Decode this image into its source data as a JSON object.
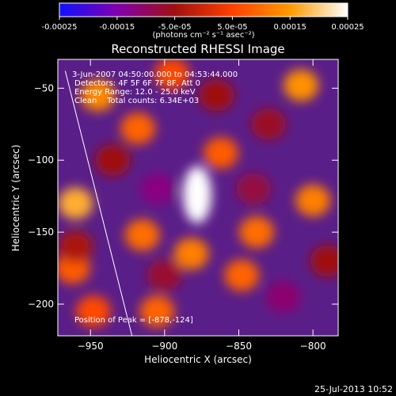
{
  "colorbar": {
    "ticks": [
      "-0.00025",
      "-0.00015",
      "-5.0e-05",
      "5.0e-05",
      "0.00015",
      "0.00025"
    ],
    "tick_values": [
      -0.00025,
      -0.00015,
      -5e-05,
      5e-05,
      0.00015,
      0.00025
    ],
    "range": [
      -0.00025,
      0.00025
    ],
    "unit_label": "(photons cm⁻² s⁻¹ asec⁻²)",
    "colors": [
      "#1010ff",
      "#8000b0",
      "#a01010",
      "#ff4000",
      "#ff9a00",
      "#ffffff"
    ]
  },
  "chart_data": {
    "type": "heatmap",
    "title": "Reconstructed RHESSI Image",
    "xlabel": "Heliocentric X (arcsec)",
    "ylabel": "Heliocentric Y (arcsec)",
    "xlim": [
      -972,
      -783
    ],
    "ylim": [
      -222,
      -30
    ],
    "xticks": [
      -950,
      -900,
      -850,
      -800
    ],
    "yticks": [
      -50,
      -100,
      -150,
      -200
    ],
    "limb_line": [
      [
        -967,
        -38
      ],
      [
        -922,
        -222
      ]
    ],
    "annotations": [
      "3-Jun-2007 04:50:00.000 to 04:53:44.000",
      "Detectors: 4F 5F 6F 7F 8F, Att 0",
      "Energy Range: 12.0 - 25.0 keV",
      "Clean    Total counts: 6.34E+03"
    ],
    "peak_label": "Position of Peak = [-878,-124]",
    "peak": [
      -878,
      -124
    ],
    "blobs": [
      {
        "x": -878,
        "y": -124,
        "value": 0.00025
      },
      {
        "x": -882,
        "y": -165,
        "value": 0.00012
      },
      {
        "x": -960,
        "y": -130,
        "value": 0.00017
      },
      {
        "x": -945,
        "y": -55,
        "value": 0.00013
      },
      {
        "x": -915,
        "y": -152,
        "value": 0.0001
      },
      {
        "x": -918,
        "y": -78,
        "value": 9e-05
      },
      {
        "x": -808,
        "y": -48,
        "value": 0.00014
      },
      {
        "x": -800,
        "y": -128,
        "value": 0.00012
      },
      {
        "x": -838,
        "y": -150,
        "value": 0.0001
      },
      {
        "x": -848,
        "y": -180,
        "value": 9e-05
      },
      {
        "x": -862,
        "y": -95,
        "value": 8e-05
      },
      {
        "x": -905,
        "y": -205,
        "value": 9e-05
      },
      {
        "x": -948,
        "y": -205,
        "value": 6e-05
      },
      {
        "x": -962,
        "y": -175,
        "value": 8e-05
      },
      {
        "x": -895,
        "y": -40,
        "value": 6e-05
      },
      {
        "x": -830,
        "y": -75,
        "value": -6e-05
      },
      {
        "x": -905,
        "y": -120,
        "value": -0.00012
      },
      {
        "x": -840,
        "y": -120,
        "value": -8e-05
      },
      {
        "x": -820,
        "y": -195,
        "value": -0.00011
      },
      {
        "x": -900,
        "y": -180,
        "value": -7e-05
      },
      {
        "x": -935,
        "y": -100,
        "value": -5e-05
      },
      {
        "x": -865,
        "y": -55,
        "value": -5e-05
      },
      {
        "x": -960,
        "y": -160,
        "value": -4e-05
      },
      {
        "x": -790,
        "y": -170,
        "value": -5e-05
      }
    ]
  },
  "footer": {
    "timestamp": "25-Jul-2013 10:52"
  }
}
